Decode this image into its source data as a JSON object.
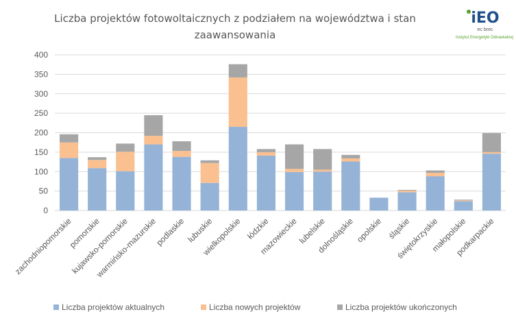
{
  "chart_data": {
    "type": "bar",
    "stacked": true,
    "title_lines": [
      "Liczba projektów fotowoltaicznych  z podziałem na województwa i stan",
      "zaawansowania"
    ],
    "ylim": [
      0,
      400
    ],
    "yticks": [
      0,
      50,
      100,
      150,
      200,
      250,
      300,
      350,
      400
    ],
    "grid": true,
    "legend_position": "bottom",
    "categories": [
      "zachodniopomorskie",
      "pomorskie",
      "kujawsko-pomorskie",
      "warmińsko-mazurskie",
      "podlaskie",
      "lubuskie",
      "wielkopolskie",
      "łódzkie",
      "mazowieckie",
      "lubelskie",
      "dolnośląskie",
      "opolskie",
      "śląskie",
      "świętokrzyskie",
      "małopolskie",
      "podkarpackie"
    ],
    "series": [
      {
        "name": "Liczba projektów aktualnych",
        "color": "#95b3d7",
        "values": [
          135,
          109,
          101,
          170,
          138,
          71,
          215,
          141,
          99,
          100,
          126,
          33,
          47,
          88,
          24,
          146
        ]
      },
      {
        "name": "Liczba nowych projektów",
        "color": "#fac090",
        "values": [
          40,
          21,
          50,
          22,
          15,
          51,
          127,
          9,
          8,
          5,
          8,
          0,
          4,
          9,
          2,
          4
        ]
      },
      {
        "name": "Liczba projektów ukończonych",
        "color": "#a6a6a6",
        "values": [
          21,
          7,
          21,
          53,
          25,
          7,
          34,
          8,
          63,
          53,
          9,
          0,
          2,
          6,
          2,
          49
        ]
      }
    ]
  },
  "logo": {
    "name": "iEO",
    "subtitle": "ec brec",
    "tagline": "Instytut Energetyki Odnawialnej",
    "colors": [
      "#1f4f8c",
      "#5aa02c"
    ]
  }
}
